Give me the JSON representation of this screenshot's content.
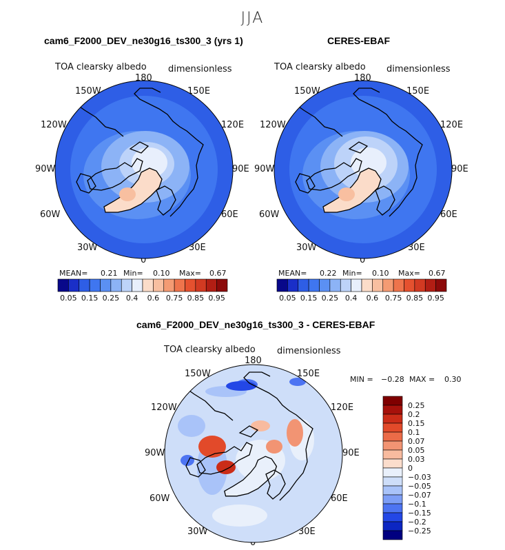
{
  "figure": {
    "season": "JJA",
    "colors": {
      "full_scale": [
        "#08088a",
        "#1a2fc8",
        "#2e5ee6",
        "#3f76f0",
        "#5b90f3",
        "#8cb3f6",
        "#bdd3f9",
        "#e8effc",
        "#fbdcc9",
        "#f8bfa0",
        "#f49b73",
        "#ee744c",
        "#e5512f",
        "#d23a22",
        "#b21e14",
        "#8c0a0a"
      ],
      "diff_scale": [
        "#000080",
        "#0c26c2",
        "#2347e6",
        "#4d74f2",
        "#7d9ef6",
        "#a9c3f9",
        "#cedef9",
        "#e9f0fb",
        "#fbddcc",
        "#f8bb9f",
        "#f29473",
        "#eb6b48",
        "#e24a2a",
        "#cb2c18",
        "#a6110b",
        "#7f0000"
      ],
      "land_outline": "#000000"
    }
  },
  "panels": {
    "left": {
      "title": "cam6_F2000_DEV_ne30g16_ts300_3 (yrs 1)",
      "left_label": "TOA clearsky albedo",
      "right_label": "dimensionless",
      "stats": {
        "mean_label": "MEAN=",
        "mean": "0.21",
        "min_label": "Min=",
        "min": "0.10",
        "max_label": "Max=",
        "max": "0.67"
      }
    },
    "right": {
      "title": "CERES-EBAF",
      "left_label": "TOA clearsky albedo",
      "right_label": "dimensionless",
      "stats": {
        "mean_label": "MEAN=",
        "mean": "0.22",
        "min_label": "Min=",
        "min": "0.10",
        "max_label": "Max=",
        "max": "0.67"
      }
    },
    "diff": {
      "title": "cam6_F2000_DEV_ne30g16_ts300_3 - CERES-EBAF",
      "left_label": "TOA clearsky albedo",
      "right_label": "dimensionless",
      "stats": {
        "min_label": "MIN =",
        "min": "−0.28",
        "max_label": "MAX =",
        "max": "0.30"
      }
    }
  },
  "longitude_labels": {
    "top": "180",
    "upper_left": "150W",
    "upper_right": "150E",
    "mid_upper_left": "120W",
    "mid_upper_right": "120E",
    "left": "90W",
    "right": "90E",
    "lower_left": "60W",
    "lower_right": "60E",
    "bottom_left": "30W",
    "bottom_right": "30E",
    "bottom": "0"
  },
  "chart_data": [
    {
      "type": "heatmap",
      "name": "model",
      "title": "cam6_F2000_DEV_ne30g16_ts300_3 (yrs 1)",
      "projection": "north-polar-stereographic",
      "variable": "TOA clearsky albedo",
      "units": "dimensionless",
      "colorbar_ticks": [
        "0.05",
        "0.15",
        "0.25",
        "0.4",
        "0.6",
        "0.75",
        "0.85",
        "0.95"
      ],
      "mean": 0.21,
      "min": 0.1,
      "max": 0.67
    },
    {
      "type": "heatmap",
      "name": "obs",
      "title": "CERES-EBAF",
      "projection": "north-polar-stereographic",
      "variable": "TOA clearsky albedo",
      "units": "dimensionless",
      "colorbar_ticks": [
        "0.05",
        "0.15",
        "0.25",
        "0.4",
        "0.6",
        "0.75",
        "0.85",
        "0.95"
      ],
      "mean": 0.22,
      "min": 0.1,
      "max": 0.67
    },
    {
      "type": "heatmap",
      "name": "difference",
      "title": "cam6_F2000_DEV_ne30g16_ts300_3 - CERES-EBAF",
      "projection": "north-polar-stereographic",
      "variable": "TOA clearsky albedo",
      "units": "dimensionless",
      "colorbar_ticks": [
        "0.25",
        "0.2",
        "0.15",
        "0.1",
        "0.07",
        "0.05",
        "0.03",
        "0",
        "−0.03",
        "−0.05",
        "−0.07",
        "−0.1",
        "−0.15",
        "−0.2",
        "−0.25"
      ],
      "min": -0.28,
      "max": 0.3
    }
  ]
}
